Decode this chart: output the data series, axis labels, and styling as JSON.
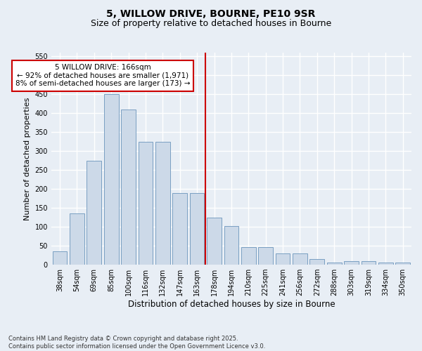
{
  "title": "5, WILLOW DRIVE, BOURNE, PE10 9SR",
  "subtitle": "Size of property relative to detached houses in Bourne",
  "xlabel": "Distribution of detached houses by size in Bourne",
  "ylabel": "Number of detached properties",
  "categories": [
    "38sqm",
    "54sqm",
    "69sqm",
    "85sqm",
    "100sqm",
    "116sqm",
    "132sqm",
    "147sqm",
    "163sqm",
    "178sqm",
    "194sqm",
    "210sqm",
    "225sqm",
    "241sqm",
    "256sqm",
    "272sqm",
    "288sqm",
    "303sqm",
    "319sqm",
    "334sqm",
    "350sqm"
  ],
  "values": [
    35,
    135,
    275,
    450,
    410,
    325,
    325,
    190,
    190,
    125,
    103,
    47,
    47,
    30,
    30,
    15,
    5,
    9,
    9,
    5,
    5
  ],
  "bar_color": "#ccd9e8",
  "bar_edge_color": "#7a9fc2",
  "background_color": "#e8eef5",
  "grid_color": "#ffffff",
  "vline_x_index": 8,
  "vline_color": "#cc0000",
  "annotation_text": "5 WILLOW DRIVE: 166sqm\n← 92% of detached houses are smaller (1,971)\n8% of semi-detached houses are larger (173) →",
  "annotation_box_color": "#ffffff",
  "annotation_box_edge_color": "#cc0000",
  "ylim": [
    0,
    560
  ],
  "yticks": [
    0,
    50,
    100,
    150,
    200,
    250,
    300,
    350,
    400,
    450,
    500,
    550
  ],
  "footnote": "Contains HM Land Registry data © Crown copyright and database right 2025.\nContains public sector information licensed under the Open Government Licence v3.0.",
  "title_fontsize": 10,
  "subtitle_fontsize": 9,
  "xlabel_fontsize": 8.5,
  "ylabel_fontsize": 8,
  "tick_fontsize": 7,
  "annotation_fontsize": 7.5,
  "footnote_fontsize": 6
}
